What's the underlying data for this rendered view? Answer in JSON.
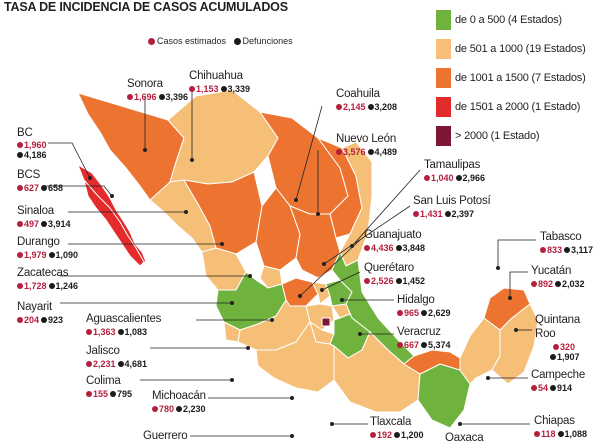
{
  "title": "TASA DE INCIDENCIA DE CASOS ACUMULADOS",
  "key": {
    "cases_label": "Casos estimados",
    "deaths_label": "Defunciones"
  },
  "legend": [
    {
      "label": "de 0 a 500 (4 Estados)",
      "color": "#6fb23d"
    },
    {
      "label": "de 501 a 1000 (19 Estados)",
      "color": "#f6bf78"
    },
    {
      "label": "de 1001 a 1500 (7 Estados)",
      "color": "#ec7430"
    },
    {
      "label": "de 1501 a 2000 (1 Estado)",
      "color": "#e32b2b"
    },
    {
      "label": "> 2000 (1 Estado)",
      "color": "#7d1535"
    }
  ],
  "colors": {
    "case_dot": "#b51f3d",
    "death_dot": "#1b1b1b",
    "leader_line": "#222222",
    "border": "#ffffff"
  },
  "states": {
    "sonora": {
      "name": "Sonora",
      "cases": "1,696",
      "deaths": "3,396"
    },
    "chihuahua": {
      "name": "Chihuahua",
      "cases": "1,153",
      "deaths": "3,339"
    },
    "coahuila": {
      "name": "Coahuila",
      "cases": "2,145",
      "deaths": "3,208"
    },
    "nuevo_leon": {
      "name": "Nuevo León",
      "cases": "3,576",
      "deaths": "4,489"
    },
    "bc": {
      "name": "BC",
      "cases": "1,960",
      "deaths": "4,186"
    },
    "bcs": {
      "name": "BCS",
      "cases": "627",
      "deaths": "658"
    },
    "sinaloa": {
      "name": "Sinaloa",
      "cases": "497",
      "deaths": "3,914"
    },
    "durango": {
      "name": "Durango",
      "cases": "1,979",
      "deaths": "1,090"
    },
    "zacatecas": {
      "name": "Zacatecas",
      "cases": "1,728",
      "deaths": "1,246"
    },
    "nayarit": {
      "name": "Nayarit",
      "cases": "204",
      "deaths": "923"
    },
    "aguascalientes": {
      "name": "Aguascalientes",
      "cases": "1,363",
      "deaths": "1,083"
    },
    "jalisco": {
      "name": "Jalisco",
      "cases": "2,231",
      "deaths": "4,681"
    },
    "colima": {
      "name": "Colima",
      "cases": "155",
      "deaths": "795"
    },
    "michoacan": {
      "name": "Michoacán",
      "cases": "780",
      "deaths": "2,230"
    },
    "guerrero": {
      "name": "Guerrero"
    },
    "tamaulipas": {
      "name": "Tamaulipas",
      "cases": "1,040",
      "deaths": "2,966"
    },
    "san_luis_potosi": {
      "name": "San Luis Potosí",
      "cases": "1,431",
      "deaths": "2,397"
    },
    "guanajuato": {
      "name": "Guanajuato",
      "cases": "4,436",
      "deaths": "3,848"
    },
    "queretaro": {
      "name": "Querétaro",
      "cases": "2,526",
      "deaths": "1,452"
    },
    "hidalgo": {
      "name": "Hidalgo",
      "cases": "965",
      "deaths": "2,629"
    },
    "veracruz": {
      "name": "Veracruz",
      "cases": "667",
      "deaths": "5,374"
    },
    "tlaxcala": {
      "name": "Tlaxcala",
      "cases": "192",
      "deaths": "1,200"
    },
    "oaxaca": {
      "name": "Oaxaca"
    },
    "tabasco": {
      "name": "Tabasco",
      "cases": "833",
      "deaths": "3,117"
    },
    "yucatan": {
      "name": "Yucatán",
      "cases": "892",
      "deaths": "2,032"
    },
    "quintana_roo": {
      "name": "Quintana\nRoo",
      "cases": "320",
      "deaths": "1,907"
    },
    "campeche": {
      "name": "Campeche",
      "cases": "54",
      "deaths": "914"
    },
    "chiapas": {
      "name": "Chiapas",
      "cases": "118",
      "deaths": "1,088"
    }
  }
}
